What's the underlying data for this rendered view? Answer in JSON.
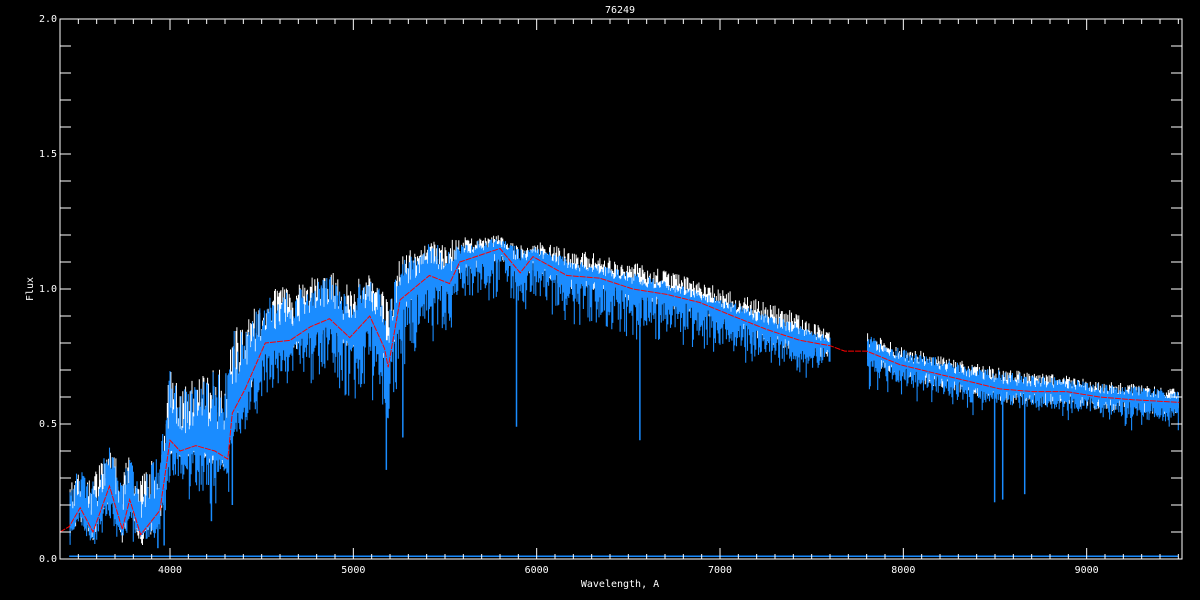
{
  "chart_data": {
    "type": "line",
    "title": "76249",
    "xlabel": "Wavelength, A",
    "ylabel": "Flux",
    "xlim": [
      3400,
      9520
    ],
    "ylim": [
      0,
      2.0
    ],
    "x_ticks": [
      4000,
      5000,
      6000,
      7000,
      8000,
      9000
    ],
    "x_tick_labels": [
      "4000",
      "5000",
      "6000",
      "7000",
      "8000",
      "9000"
    ],
    "y_ticks": [
      0,
      0.5,
      1.0,
      1.5,
      2.0
    ],
    "y_tick_labels": [
      "0.0",
      "0.5",
      "1.0",
      "1.5",
      "2.0"
    ],
    "grid": false,
    "background": "#000000",
    "colors": {
      "observed": "#1a8cff",
      "model": "#ff0000",
      "secondary": "#ffffff",
      "axes": "#ffffff"
    },
    "x": [
      3400,
      3450,
      3510,
      3580,
      3670,
      3740,
      3780,
      3840,
      3945,
      4000,
      4055,
      4140,
      4245,
      4315,
      4340,
      4410,
      4520,
      4655,
      4765,
      4870,
      4980,
      5090,
      5170,
      5190,
      5255,
      5415,
      5525,
      5580,
      5800,
      5910,
      5980,
      6165,
      6345,
      6525,
      6710,
      6890,
      7070,
      7255,
      7435,
      7600,
      7680,
      7800,
      7980,
      8160,
      8345,
      8525,
      8705,
      8890,
      9070,
      9250,
      9505
    ],
    "model_flux": [
      0.1,
      0.12,
      0.19,
      0.1,
      0.27,
      0.11,
      0.22,
      0.09,
      0.18,
      0.44,
      0.4,
      0.42,
      0.4,
      0.37,
      0.54,
      0.63,
      0.8,
      0.81,
      0.86,
      0.89,
      0.82,
      0.9,
      0.78,
      0.71,
      0.96,
      1.05,
      1.02,
      1.1,
      1.15,
      1.06,
      1.12,
      1.05,
      1.04,
      1.0,
      0.98,
      0.95,
      0.9,
      0.85,
      0.81,
      0.79,
      0.77,
      0.77,
      0.72,
      0.69,
      0.66,
      0.63,
      0.62,
      0.62,
      0.6,
      0.59,
      0.58
    ],
    "observed_flux_high": [
      null,
      0.25,
      0.35,
      0.3,
      0.43,
      0.3,
      0.4,
      0.3,
      0.4,
      0.7,
      0.62,
      0.66,
      0.7,
      0.72,
      0.85,
      0.85,
      0.98,
      0.99,
      1.02,
      1.05,
      1.0,
      1.04,
      0.98,
      0.95,
      1.1,
      1.17,
      1.16,
      1.17,
      1.19,
      1.15,
      1.16,
      1.12,
      1.09,
      1.06,
      1.03,
      0.99,
      0.95,
      0.91,
      0.87,
      0.82,
      null,
      0.83,
      0.78,
      0.75,
      0.72,
      0.7,
      0.68,
      0.67,
      0.65,
      0.64,
      0.62
    ],
    "observed_flux_low": [
      null,
      0.1,
      0.1,
      0.06,
      0.15,
      0.08,
      0.12,
      0.06,
      0.1,
      0.3,
      0.3,
      0.25,
      0.25,
      0.25,
      0.45,
      0.5,
      0.65,
      0.68,
      0.7,
      0.7,
      0.6,
      0.65,
      0.55,
      0.5,
      0.75,
      0.85,
      0.88,
      0.95,
      1.02,
      0.95,
      0.98,
      0.92,
      0.9,
      0.86,
      0.86,
      0.82,
      0.78,
      0.74,
      0.72,
      0.7,
      null,
      0.68,
      0.64,
      0.62,
      0.58,
      0.57,
      0.56,
      0.55,
      0.54,
      0.52,
      0.5
    ],
    "secondary_flux_high": [
      null,
      0.26,
      0.36,
      0.31,
      0.44,
      0.31,
      0.41,
      0.31,
      0.41,
      0.71,
      0.63,
      0.67,
      0.71,
      0.73,
      0.87,
      0.87,
      1.0,
      1.01,
      1.04,
      1.07,
      1.02,
      1.06,
      1.0,
      0.97,
      1.12,
      1.19,
      1.18,
      1.19,
      1.2,
      1.17,
      1.18,
      1.15,
      1.13,
      1.1,
      1.07,
      1.03,
      0.99,
      0.95,
      0.91,
      0.84,
      null,
      0.84,
      0.79,
      0.76,
      0.73,
      0.71,
      0.69,
      0.68,
      0.66,
      0.65,
      0.63
    ],
    "deep_lines": [
      {
        "wavelength": 3934,
        "flux_min": 0.04
      },
      {
        "wavelength": 3968,
        "flux_min": 0.05
      },
      {
        "wavelength": 4226,
        "flux_min": 0.14
      },
      {
        "wavelength": 4340,
        "flux_min": 0.2
      },
      {
        "wavelength": 5180,
        "flux_min": 0.33
      },
      {
        "wavelength": 5270,
        "flux_min": 0.45
      },
      {
        "wavelength": 5890,
        "flux_min": 0.49
      },
      {
        "wavelength": 6563,
        "flux_min": 0.44
      },
      {
        "wavelength": 8498,
        "flux_min": 0.21
      },
      {
        "wavelength": 8542,
        "flux_min": 0.22
      },
      {
        "wavelength": 8662,
        "flux_min": 0.24
      }
    ],
    "error_flux_level": 0.01
  }
}
